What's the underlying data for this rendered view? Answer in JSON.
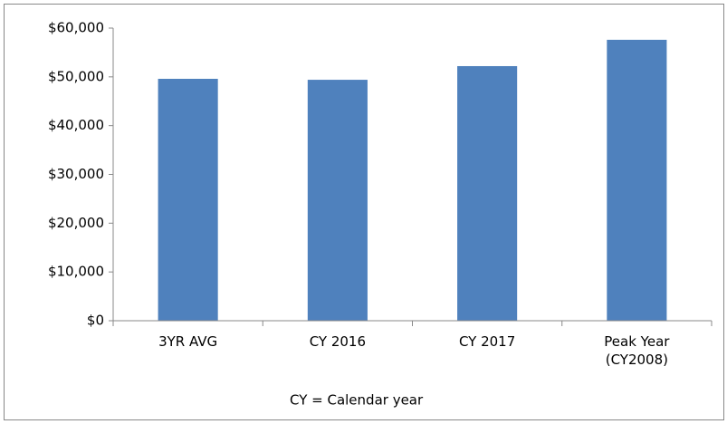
{
  "chart_data": {
    "type": "bar",
    "categories": [
      "3YR AVG",
      "CY 2016",
      "CY 2017",
      "Peak Year (CY2008)"
    ],
    "values": [
      49600,
      49400,
      52200,
      57600
    ],
    "color": "#4f81bd",
    "ylim": [
      0,
      60000
    ],
    "yticks": [
      {
        "value": 0,
        "label": "$0"
      },
      {
        "value": 10000,
        "label": "$10,000"
      },
      {
        "value": 20000,
        "label": "$20,000"
      },
      {
        "value": 30000,
        "label": "$30,000"
      },
      {
        "value": 40000,
        "label": "$40,000"
      },
      {
        "value": 50000,
        "label": "$50,000"
      },
      {
        "value": 60000,
        "label": "$60,000"
      }
    ],
    "grid": false,
    "annotation": "CY = Calendar year"
  }
}
